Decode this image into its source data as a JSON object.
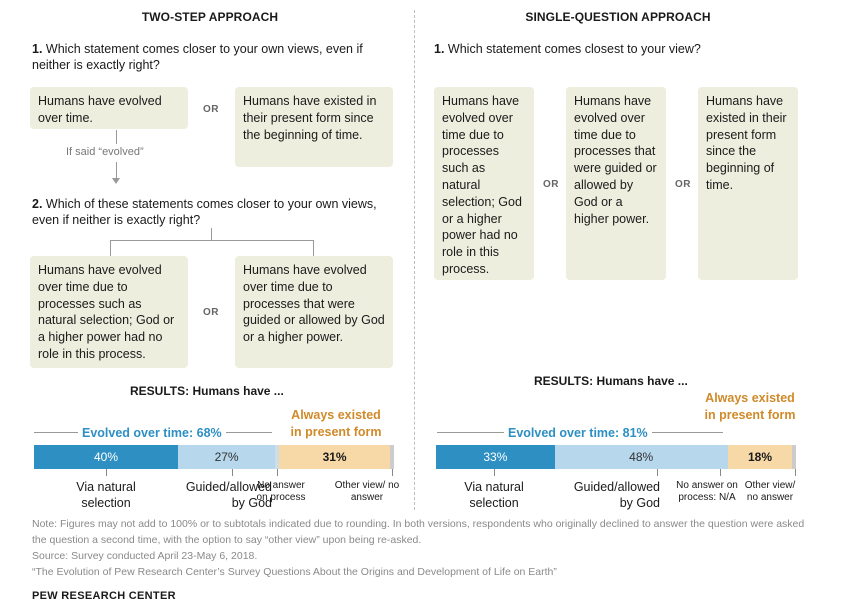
{
  "left": {
    "header": "TWO-STEP APPROACH",
    "q1_num": "1.",
    "q1_text": "Which statement comes closer to your own views, even if neither is exactly right?",
    "card1": "Humans have evolved over time.",
    "or": "OR",
    "card2": "Humans have existed in their present form since the beginning of time.",
    "if_said": "If said “evolved”",
    "q2_num": "2.",
    "q2_text": "Which of these statements comes closer to your own views, even if neither is exactly right?",
    "card3": "Humans have evolved over time due to processes such as natural selection; God or a higher power had no role in this process.",
    "card4": "Humans have evolved over time due to processes that were guided or allowed by God or a higher power.",
    "results_title": "RESULTS: Humans have ...",
    "evolved_label": "Evolved over time: 68%",
    "always_label": "Always existed in present form",
    "bar": {
      "natural_pct": "40%",
      "god_pct": "27%",
      "always_pct": "31%"
    },
    "labels": {
      "natural": "Via natural selection",
      "god": "Guided/allowed by God",
      "no_answer": "No answer on process",
      "other": "Other view/ no answer"
    }
  },
  "right": {
    "header": "SINGLE-QUESTION APPROACH",
    "q1_num": "1.",
    "q1_text": "Which statement comes closest to your view?",
    "card1": "Humans have evolved over time due to processes such as natural selection; God or a higher power had no role in this process.",
    "card2": "Humans have evolved over time due to processes that were guided or allowed by God or a higher power.",
    "card3": "Humans have existed in their present form since the beginning of time.",
    "or": "OR",
    "results_title": "RESULTS: Humans have ...",
    "evolved_label": "Evolved over time: 81%",
    "always_label": "Always existed in present form",
    "bar": {
      "natural_pct": "33%",
      "god_pct": "48%",
      "always_pct": "18%"
    },
    "labels": {
      "natural": "Via natural selection",
      "god": "Guided/allowed by God",
      "no_answer": "No answer on process: N/A",
      "other": "Other view/ no answer"
    }
  },
  "chart_data": [
    {
      "type": "bar",
      "title": "RESULTS: Humans have ...",
      "categories": [
        "Via natural selection",
        "Guided/allowed by God",
        "No answer on process",
        "Always existed in present form",
        "Other view/ no answer"
      ],
      "values": [
        40,
        27,
        1,
        31,
        1
      ]
    },
    {
      "type": "bar",
      "title": "RESULTS: Humans have ...",
      "categories": [
        "Via natural selection",
        "Guided/allowed by God",
        "No answer on process",
        "Always existed in present form",
        "Other view/ no answer"
      ],
      "values": [
        33,
        48,
        0,
        18,
        1
      ]
    }
  ],
  "colors": {
    "natural": "#2e8fc3",
    "god": "#b7d7ec",
    "no_answer": "#cfdde7",
    "always": "#f7d9a8",
    "other": "#cccccc",
    "accent_orange": "#d08a2a",
    "card": "#eeeedf"
  },
  "footer": {
    "note": "Note: Figures may not add to 100% or to subtotals indicated due to rounding. In both versions, respondents who originally declined to answer the question were asked the question a second time, with the option to say “other view” upon being re-asked.",
    "source": "Source: Survey conducted April 23-May 6, 2018.",
    "citation": "“The Evolution of Pew Research Center’s Survey Questions About the Origins and Development of Life on Earth”",
    "brand": "PEW RESEARCH CENTER"
  }
}
